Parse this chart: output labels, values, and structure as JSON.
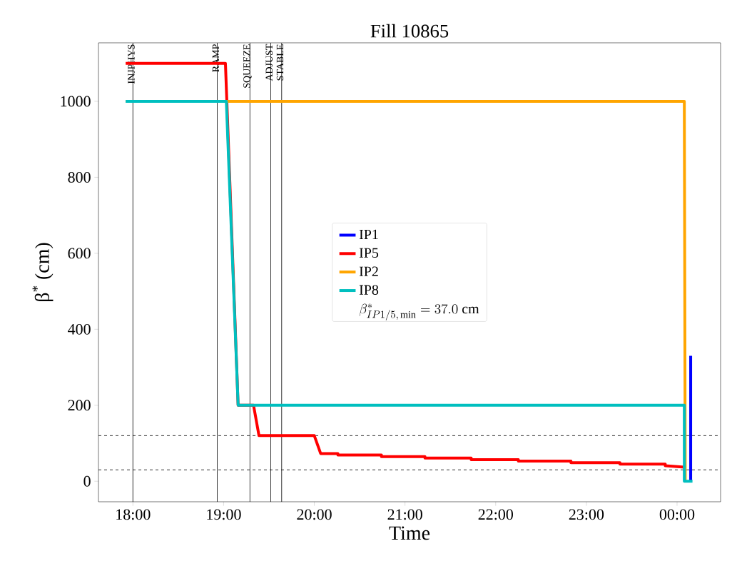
{
  "chart_data": {
    "type": "line",
    "title": "Fill 10865",
    "xlabel": "Time",
    "ylabel": "β$^{*}$ (cm)",
    "xlim": [
      17.62,
      24.48
    ],
    "ylim": [
      -54,
      1154
    ],
    "xticks": [
      {
        "value": 18,
        "label": "18:00"
      },
      {
        "value": 19,
        "label": "19:00"
      },
      {
        "value": 20,
        "label": "20:00"
      },
      {
        "value": 21,
        "label": "21:00"
      },
      {
        "value": 22,
        "label": "22:00"
      },
      {
        "value": 23,
        "label": "23:00"
      },
      {
        "value": 24,
        "label": "00:00"
      }
    ],
    "yticks": [
      0,
      200,
      400,
      600,
      800,
      1000
    ],
    "grid": false,
    "legend": "center",
    "line_style": "solid",
    "marker": "none",
    "annotations": [
      "\\beta^{*}_{IP1/5,\\,\\min} = 37.0\\ \\mathrm{cm}"
    ],
    "series": [
      {
        "name": "IP1",
        "color": "#0000ff",
        "x": [
          24.15,
          24.15
        ],
        "values": [
          0,
          330
        ]
      },
      {
        "name": "IP5",
        "color": "#ff0000",
        "x": [
          17.92,
          19.02,
          19.16,
          19.33,
          19.39,
          20.0,
          20.07,
          20.26,
          20.26,
          20.74,
          20.74,
          21.22,
          21.22,
          21.73,
          21.73,
          22.25,
          22.25,
          22.83,
          22.83,
          23.37,
          23.37,
          23.87,
          23.87,
          24.08
        ],
        "values": [
          1100,
          1100,
          200,
          200,
          120,
          120,
          73,
          73,
          69,
          69,
          65,
          65,
          61,
          61,
          57,
          57,
          53,
          53,
          49,
          49,
          45,
          45,
          41,
          37
        ]
      },
      {
        "name": "IP2",
        "color": "#ffa500",
        "x": [
          17.92,
          24.08,
          24.09
        ],
        "values": [
          1000,
          1000,
          0
        ]
      },
      {
        "name": "IP8",
        "color": "#00bfbf",
        "x": [
          17.92,
          19.03,
          19.16,
          24.08,
          24.08,
          24.17
        ],
        "values": [
          1000,
          1000,
          200,
          200,
          0,
          0
        ]
      }
    ],
    "ref_lines": [
      {
        "axis": "x",
        "value": 18.0,
        "label": "INJPHYS",
        "color": "#000000"
      },
      {
        "axis": "x",
        "value": 18.93,
        "label": "RAMP",
        "color": "#000000"
      },
      {
        "axis": "x",
        "value": 19.29,
        "label": "SQUEEZE",
        "color": "#000000"
      },
      {
        "axis": "x",
        "value": 19.52,
        "label": "ADJUST",
        "color": "#000000"
      },
      {
        "axis": "x",
        "value": 19.64,
        "label": "STABLE",
        "color": "#000000"
      },
      {
        "axis": "y",
        "value": 120,
        "color": "#000000",
        "line_style": "dashed"
      },
      {
        "axis": "y",
        "value": 30,
        "color": "#000000",
        "line_style": "dashed"
      }
    ]
  }
}
